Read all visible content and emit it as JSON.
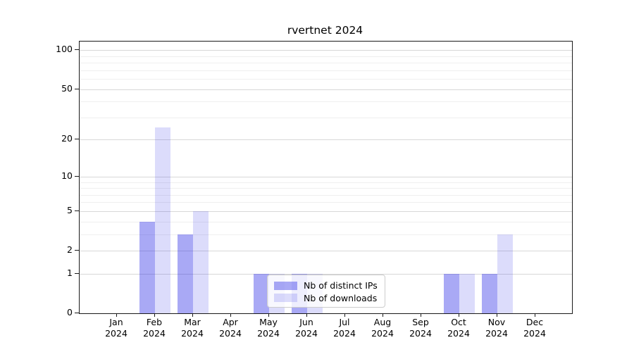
{
  "title": "rvertnet 2024",
  "colors": {
    "bar_distinct_ips": "rgba(40,40,230,0.40)",
    "bar_downloads": "rgba(40,40,230,0.16)",
    "grid_major": "#d8d8d8",
    "grid_minor": "#efefef",
    "axis": "#1a1a1a",
    "background": "#ffffff"
  },
  "chart_data": {
    "type": "bar",
    "title": "rvertnet 2024",
    "categories": [
      "Jan",
      "Feb",
      "Mar",
      "Apr",
      "May",
      "Jun",
      "Jul",
      "Aug",
      "Sep",
      "Oct",
      "Nov",
      "Dec"
    ],
    "year_label": "2024",
    "series": [
      {
        "name": "Nb of distinct IPs",
        "color": "rgba(40,40,230,0.40)",
        "values": [
          0,
          4,
          3,
          0,
          1,
          1,
          0,
          0,
          0,
          1,
          1,
          0
        ]
      },
      {
        "name": "Nb of downloads",
        "color": "rgba(40,40,230,0.16)",
        "values": [
          0,
          25,
          5,
          0,
          1,
          1,
          0,
          0,
          0,
          1,
          3,
          0
        ]
      }
    ],
    "yscale": "log1p",
    "yticks": [
      100,
      50,
      20,
      10,
      5,
      2,
      1,
      0
    ],
    "minor_gridlines": [
      3,
      4,
      6,
      7,
      8,
      9,
      30,
      40,
      60,
      70,
      80,
      90
    ],
    "ylim": [
      0,
      113
    ],
    "xlabel": "",
    "ylabel": "",
    "grid": true,
    "legend_position": "lower-center-inside"
  }
}
